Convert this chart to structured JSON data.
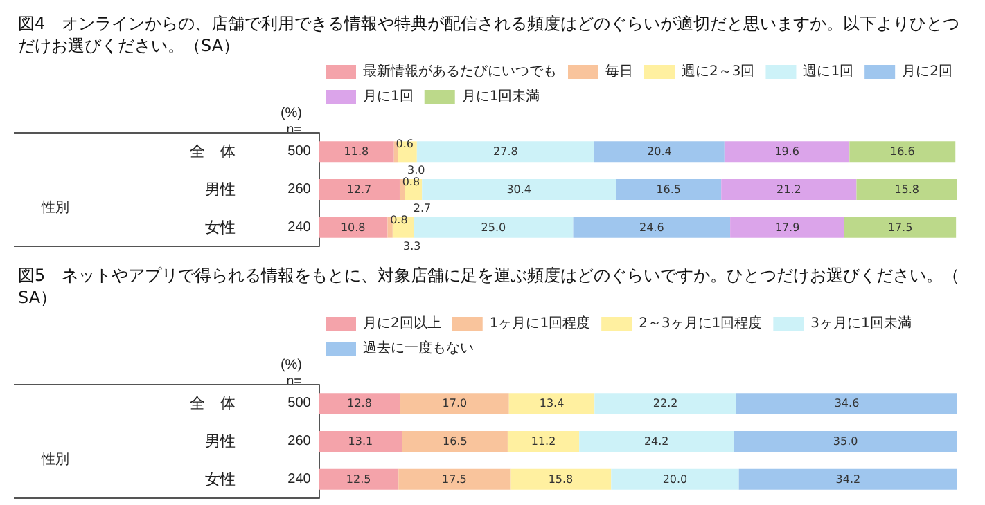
{
  "chart_data": [
    {
      "type": "bar",
      "orientation": "horizontal",
      "stacked": true,
      "legend": "top",
      "title": "図4　オンラインからの、店舗で利用できる情報や特典が配信される頻度はどのぐらいが適切だと思いますか。以下よりひとつだけお選びください。（SA）",
      "categories": [
        "全　体",
        "男性",
        "女性"
      ],
      "annotations": [
        "(%)",
        "n=",
        "500",
        "260",
        "240",
        "性別"
      ],
      "series": [
        {
          "name": "最新情報があるたびにいつでも",
          "color": "#f4a3aa",
          "values": [
            11.8,
            12.7,
            10.8
          ],
          "value_labels": [
            "11.8",
            "12.7",
            "10.8"
          ]
        },
        {
          "name": "毎日",
          "color": "#f9c49c",
          "values": [
            0.6,
            0.8,
            0.8
          ],
          "value_labels": [
            "0.6",
            "0.8",
            "0.8"
          ]
        },
        {
          "name": "週に2～3回",
          "color": "#fff0a0",
          "values": [
            3.0,
            2.7,
            3.3
          ],
          "value_labels": [
            "3.0",
            "2.7",
            "3.3"
          ]
        },
        {
          "name": "週に1回",
          "color": "#cdf2f8",
          "values": [
            27.8,
            30.4,
            25.0
          ],
          "value_labels": [
            "27.8",
            "30.4",
            "25.0"
          ]
        },
        {
          "name": "月に2回",
          "color": "#9fc6ee",
          "values": [
            20.4,
            16.5,
            24.6
          ],
          "value_labels": [
            "20.4",
            "16.5",
            "24.6"
          ]
        },
        {
          "name": "月に1回",
          "color": "#dba4ea",
          "values": [
            19.6,
            21.2,
            17.9
          ],
          "value_labels": [
            "19.6",
            "21.2",
            "17.9"
          ]
        },
        {
          "name": "月に1回未満",
          "color": "#bcd98a",
          "values": [
            16.6,
            15.8,
            17.5
          ],
          "value_labels": [
            "16.6",
            "15.8",
            "17.5"
          ]
        }
      ]
    },
    {
      "type": "bar",
      "orientation": "horizontal",
      "stacked": true,
      "legend": "top",
      "title": "図5　ネットやアプリで得られる情報をもとに、対象店舗に足を運ぶ頻度はどのぐらいですか。ひとつだけお選びください。（SA）",
      "categories": [
        "全　体",
        "男性",
        "女性"
      ],
      "annotations": [
        "(%)",
        "n=",
        "500",
        "260",
        "240",
        "性別"
      ],
      "series": [
        {
          "name": "月に2回以上",
          "color": "#f4a3aa",
          "values": [
            12.8,
            13.1,
            12.5
          ],
          "value_labels": [
            "12.8",
            "13.1",
            "12.5"
          ]
        },
        {
          "name": "1ヶ月に1回程度",
          "color": "#f9c49c",
          "values": [
            17.0,
            16.5,
            17.5
          ],
          "value_labels": [
            "17.0",
            "16.5",
            "17.5"
          ]
        },
        {
          "name": "2～3ヶ月に1回程度",
          "color": "#fff0a0",
          "values": [
            13.4,
            11.2,
            15.8
          ],
          "value_labels": [
            "13.4",
            "11.2",
            "15.8"
          ]
        },
        {
          "name": "3ヶ月に1回未満",
          "color": "#cdf2f8",
          "values": [
            22.2,
            24.2,
            20.0
          ],
          "value_labels": [
            "22.2",
            "24.2",
            "20.0"
          ]
        },
        {
          "name": "過去に一度もない",
          "color": "#9fc6ee",
          "values": [
            34.6,
            35.0,
            34.2
          ],
          "value_labels": [
            "34.6",
            "35.0",
            "34.2"
          ]
        }
      ]
    }
  ]
}
